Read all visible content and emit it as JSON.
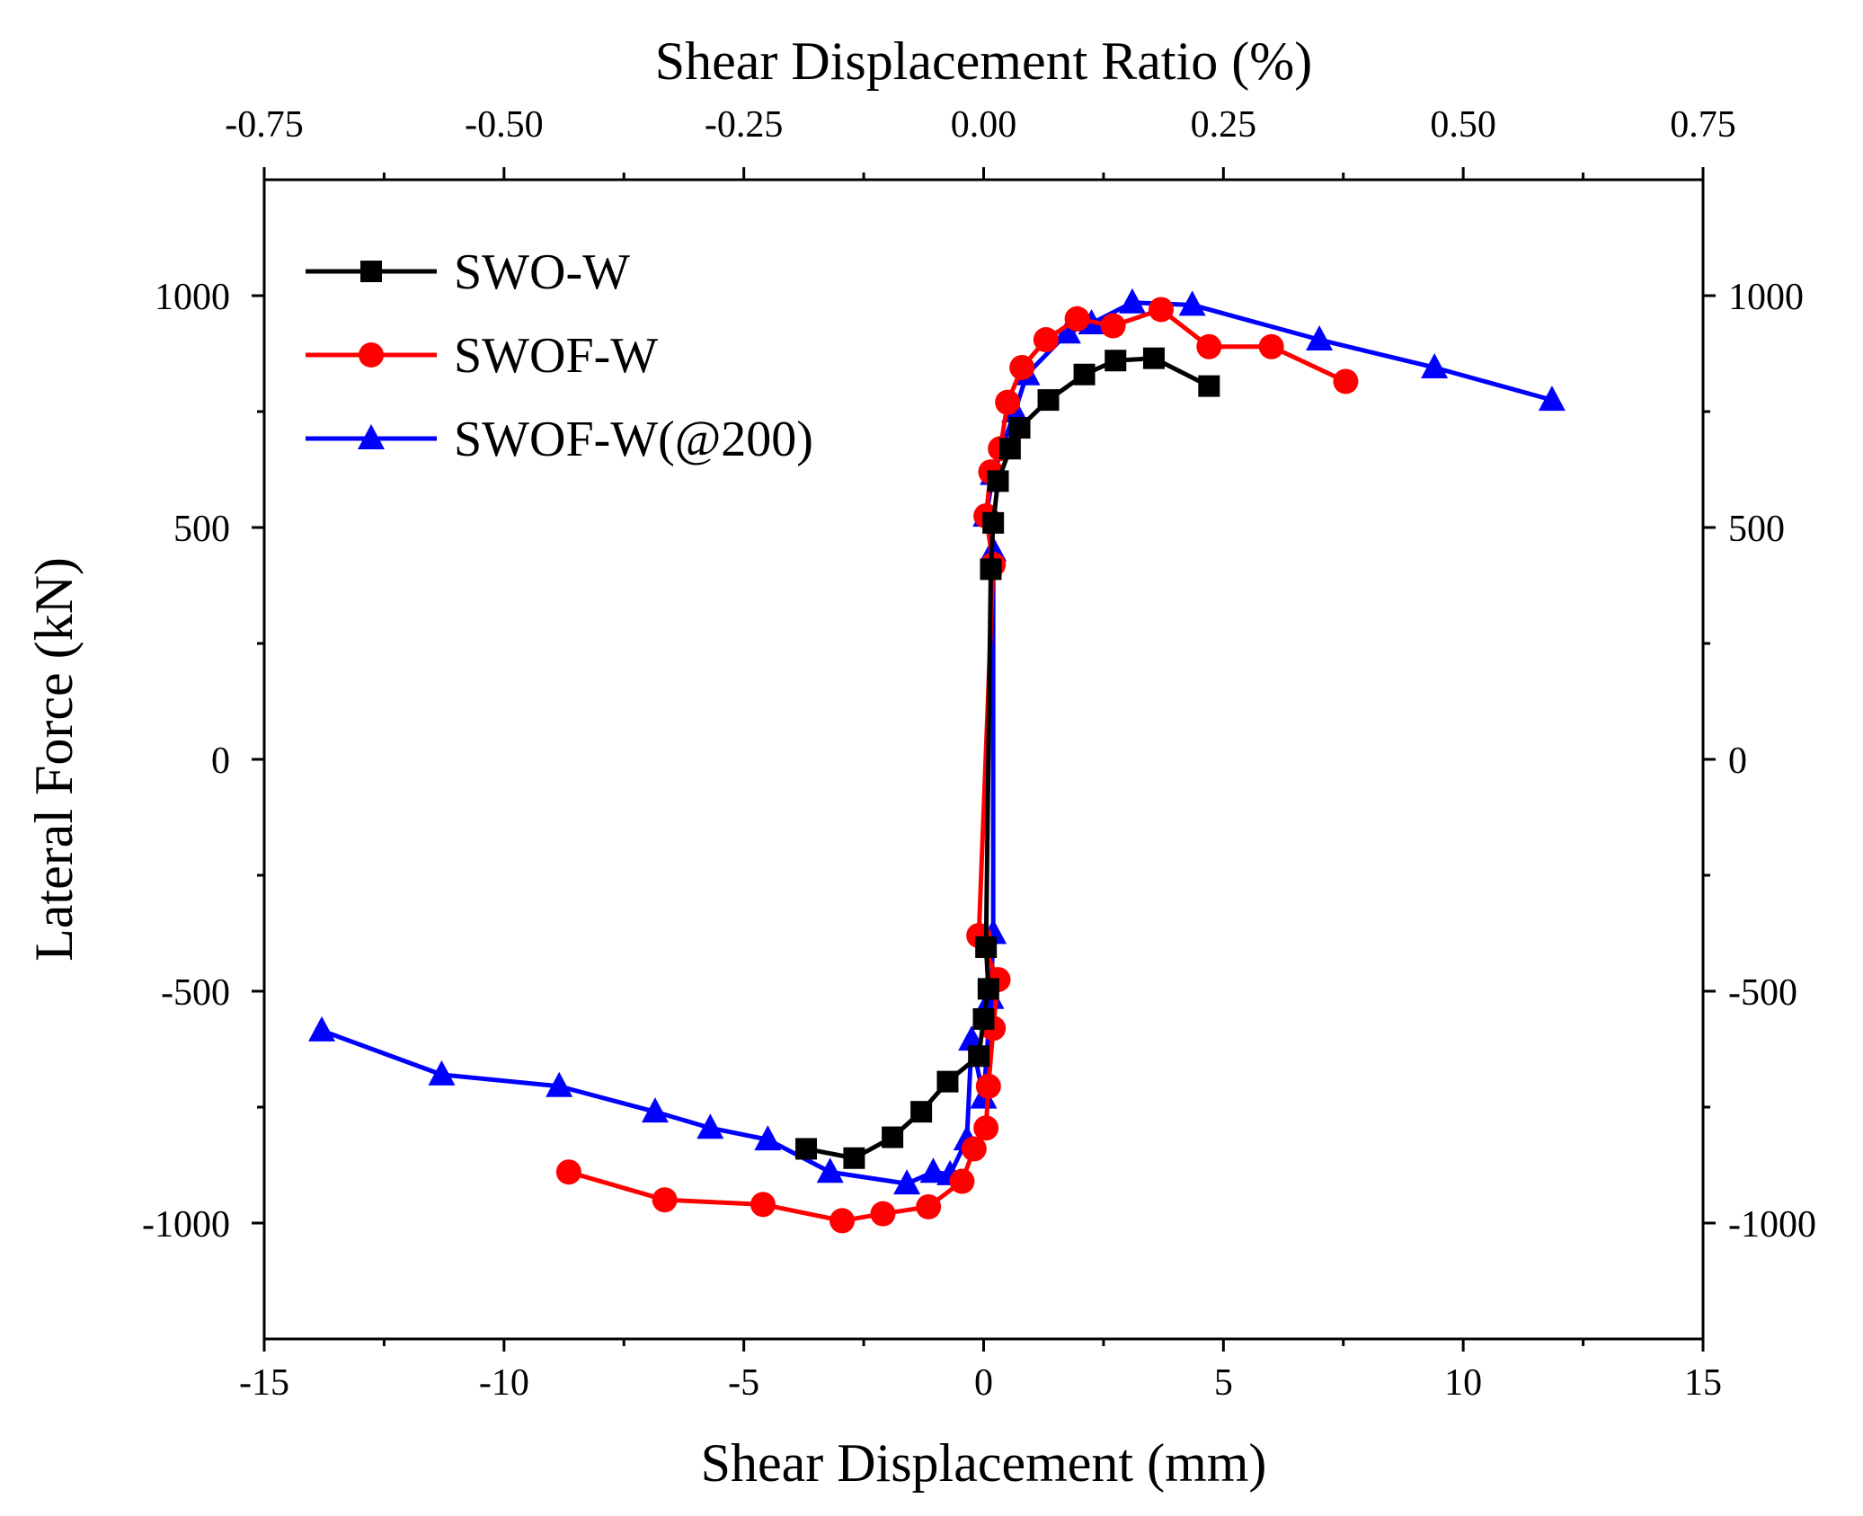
{
  "chart_data": {
    "type": "line",
    "xlabel": "Shear Displacement (mm)",
    "ylabel": "Lateral Force (kN)",
    "x2label": "Shear Displacement Ratio (%)",
    "xlim": [
      -15,
      15
    ],
    "ylim": [
      -1250,
      1250
    ],
    "x2lim": [
      -0.75,
      0.75
    ],
    "x_ticks": [
      -15,
      -10,
      -5,
      0,
      5,
      10,
      15
    ],
    "x_tick_labels": [
      "-15",
      "-10",
      "-5",
      "0",
      "5",
      "10",
      "15"
    ],
    "x2_ticks": [
      -0.75,
      -0.5,
      -0.25,
      0,
      0.25,
      0.5,
      0.75
    ],
    "x2_tick_labels": [
      "-0.75",
      "-0.50",
      "-0.25",
      "0.00",
      "0.25",
      "0.50",
      "0.75"
    ],
    "y_ticks": [
      -1000,
      -500,
      0,
      500,
      1000
    ],
    "y_tick_labels": [
      "-1000",
      "-500",
      "0",
      "500",
      "1000"
    ],
    "y_right_tick_labels": [
      "-1000",
      "-500",
      "0",
      "500",
      "1000"
    ],
    "grid": false,
    "legend_position": "top-left",
    "series": [
      {
        "name": "SWO-W",
        "color": "#000000",
        "marker": "square",
        "x": [
          -3.7,
          -2.7,
          -1.9,
          -1.3,
          -0.75,
          -0.1,
          0.0,
          0.1,
          0.05,
          0.15,
          0.2,
          0.3,
          0.55,
          0.75,
          1.35,
          2.1,
          2.75,
          3.55,
          4.7
        ],
        "y": [
          -840,
          -860,
          -815,
          -760,
          -695,
          -640,
          -560,
          -495,
          -405,
          410,
          510,
          600,
          670,
          715,
          775,
          830,
          860,
          865,
          805
        ]
      },
      {
        "name": "SWOF-W",
        "color": "#ff0000",
        "marker": "circle",
        "x": [
          -8.65,
          -6.65,
          -4.6,
          -2.95,
          -2.1,
          -1.15,
          -0.45,
          -0.2,
          0.05,
          0.1,
          0.2,
          0.3,
          -0.1,
          0.2,
          0.05,
          0.15,
          0.35,
          0.5,
          0.8,
          1.3,
          1.95,
          2.7,
          3.7,
          4.7,
          6.0,
          7.55
        ],
        "y": [
          -890,
          -950,
          -960,
          -995,
          -980,
          -965,
          -910,
          -840,
          -795,
          -705,
          -580,
          -475,
          -380,
          420,
          525,
          620,
          670,
          770,
          845,
          905,
          950,
          935,
          970,
          890,
          890,
          815
        ]
      },
      {
        "name": "SWOF-W(@200)",
        "color": "#0000ff",
        "marker": "triangle",
        "x": [
          -13.8,
          -11.3,
          -8.85,
          -6.85,
          -5.7,
          -4.5,
          -3.2,
          -1.6,
          -1.05,
          -0.7,
          -0.35,
          -0.25,
          0.0,
          0.15,
          0.2,
          0.2,
          0.05,
          0.2,
          0.65,
          0.9,
          1.75,
          2.25,
          3.1,
          4.35,
          7.0,
          9.4,
          11.85
        ],
        "y": [
          -585,
          -680,
          -705,
          -760,
          -795,
          -820,
          -890,
          -915,
          -890,
          -895,
          -820,
          -605,
          -730,
          -515,
          -375,
          450,
          525,
          615,
          750,
          830,
          920,
          940,
          985,
          980,
          905,
          845,
          775
        ]
      }
    ]
  }
}
